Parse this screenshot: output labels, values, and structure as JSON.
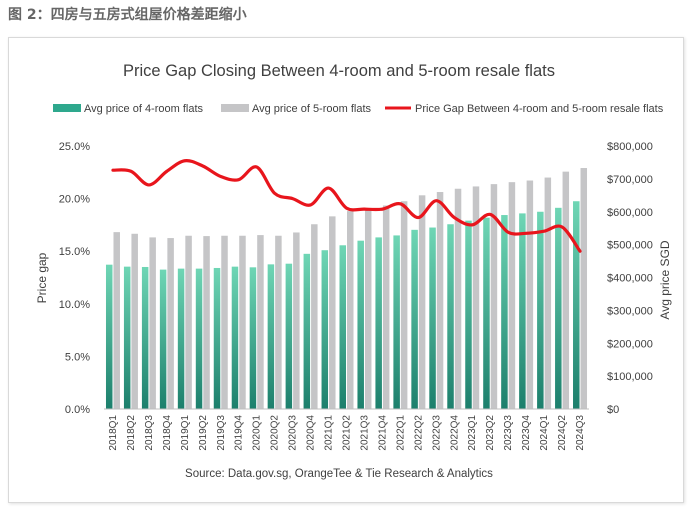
{
  "figure_label": "图 2：四房与五房式组屋价格差距缩小",
  "chart_data": {
    "type": "bar",
    "title": "Price Gap Closing Between 4-room and 5-room resale flats",
    "source": "Source: Data.gov.sg, OrangeTee & Tie Research & Analytics",
    "y_left_label": "Price gap",
    "y_right_label": "Avg price SGD",
    "y_left_range": [
      0,
      25
    ],
    "y_left_ticks": [
      "0.0%",
      "5.0%",
      "10.0%",
      "15.0%",
      "20.0%",
      "25.0%"
    ],
    "y_right_range": [
      0,
      800000
    ],
    "y_right_ticks": [
      "$0",
      "$100,000",
      "$200,000",
      "$300,000",
      "$400,000",
      "$500,000",
      "$600,000",
      "$700,000",
      "$800,000"
    ],
    "legend_position": "top",
    "grid": false,
    "categories": [
      "2018Q1",
      "2018Q2",
      "2018Q3",
      "2018Q4",
      "2019Q1",
      "2019Q2",
      "2019Q3",
      "2019Q4",
      "2020Q1",
      "2020Q2",
      "2020Q3",
      "2020Q4",
      "2021Q1",
      "2021Q2",
      "2021Q3",
      "2021Q4",
      "2022Q1",
      "2022Q2",
      "2022Q3",
      "2022Q4",
      "2023Q1",
      "2023Q2",
      "2023Q3",
      "2023Q4",
      "2024Q1",
      "2024Q2",
      "2024Q3"
    ],
    "series": [
      {
        "name": "Avg price of 4-room flats",
        "type": "bar",
        "axis": "right",
        "color": "#2ea88d",
        "values": [
          439000,
          433000,
          432000,
          424000,
          427000,
          427000,
          429000,
          433000,
          431000,
          440000,
          442000,
          472000,
          483000,
          498000,
          512000,
          522000,
          528000,
          545000,
          552000,
          562000,
          573000,
          582000,
          590000,
          595000,
          600000,
          612000,
          632000
        ]
      },
      {
        "name": "Avg price of 5-room flats",
        "type": "bar",
        "axis": "right",
        "color": "#c5c5c7",
        "values": [
          538000,
          533000,
          522000,
          520000,
          527000,
          526000,
          527000,
          527000,
          529000,
          527000,
          537000,
          562000,
          586000,
          602000,
          610000,
          619000,
          632000,
          650000,
          660000,
          670000,
          677000,
          684000,
          690000,
          695000,
          704000,
          722000,
          733000
        ]
      },
      {
        "name": "Price Gap Between 4-room and 5-room resale flats",
        "type": "line",
        "axis": "left",
        "color": "#e8151c",
        "values": [
          22.7,
          22.6,
          21.3,
          22.6,
          23.6,
          23.1,
          22.1,
          21.8,
          23.0,
          20.5,
          20.0,
          19.4,
          21.0,
          19.1,
          19.0,
          19.0,
          19.5,
          18.2,
          19.8,
          18.2,
          17.5,
          18.5,
          16.8,
          16.7,
          16.9,
          17.3,
          15.0
        ]
      }
    ]
  }
}
